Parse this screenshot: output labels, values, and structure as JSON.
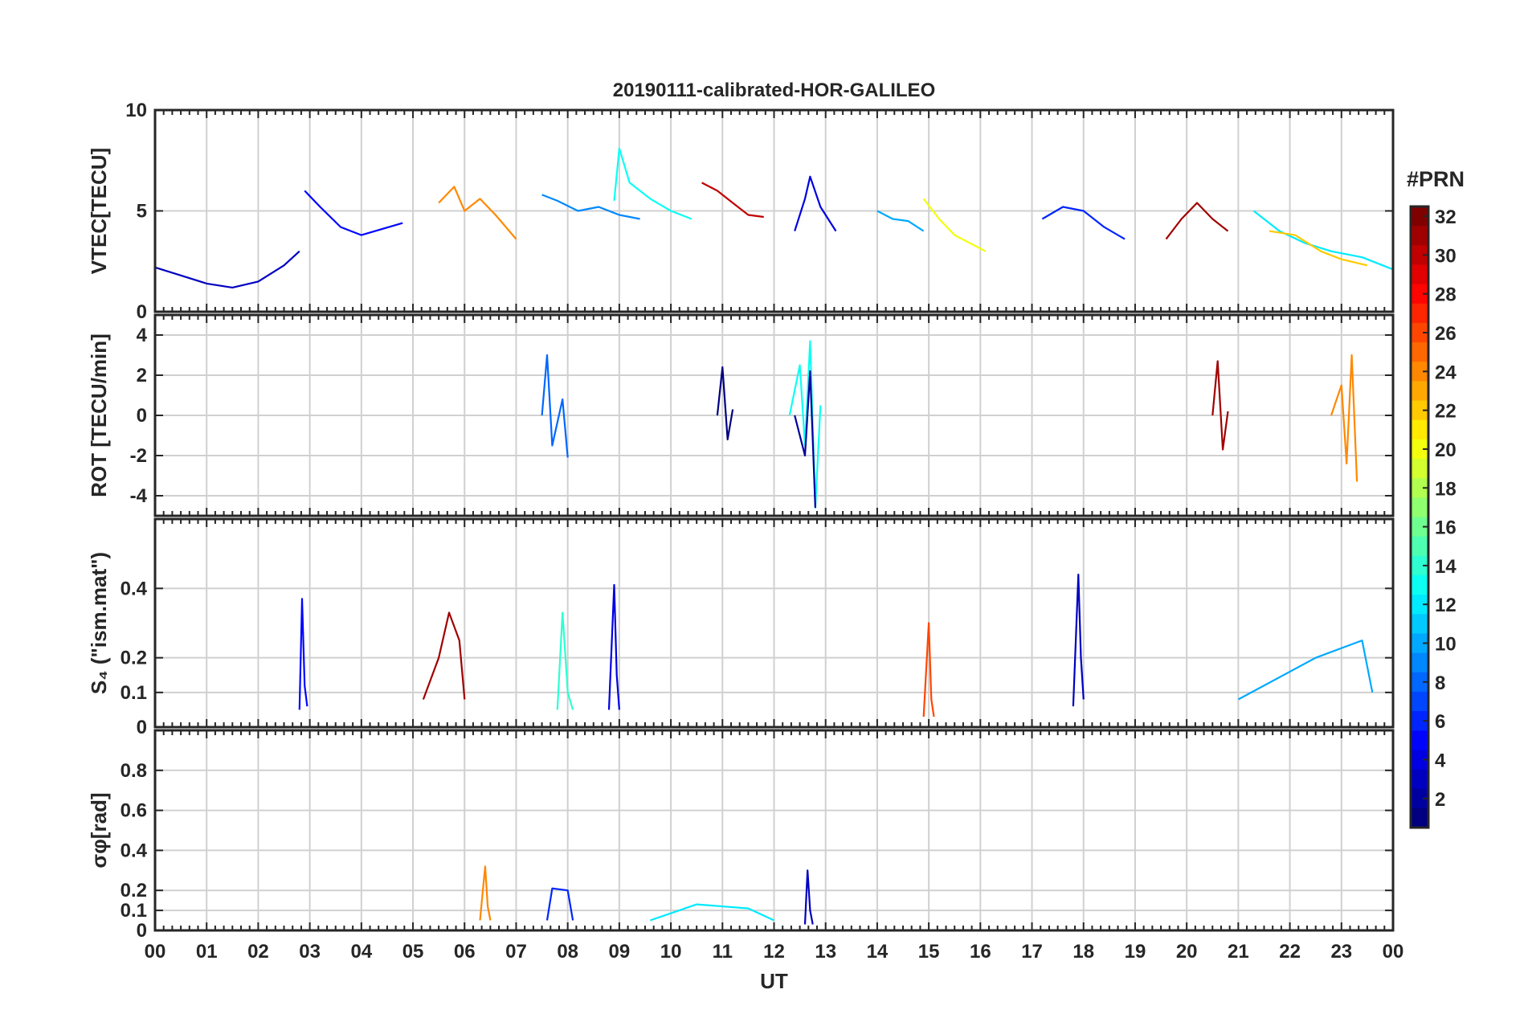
{
  "chart_data": {
    "type": "line",
    "title": "20190111-calibrated-HOR-GALILEO",
    "xlabel": "UT",
    "x_ticks": [
      "00",
      "01",
      "02",
      "03",
      "04",
      "05",
      "06",
      "07",
      "08",
      "09",
      "10",
      "11",
      "12",
      "13",
      "14",
      "15",
      "16",
      "17",
      "18",
      "19",
      "20",
      "21",
      "22",
      "23",
      "00"
    ],
    "xlim": [
      0,
      24
    ],
    "grid": true,
    "panels": [
      {
        "ylabel": "VTEC[TECU]",
        "ylim": [
          0,
          10
        ],
        "y_ticks": [
          0,
          5,
          10
        ],
        "y_tick_labels": [
          "0",
          "5",
          "10"
        ],
        "series": [
          {
            "prn": 3,
            "x": [
              0,
              0.5,
              1,
              1.5,
              2,
              2.5,
              2.8
            ],
            "y": [
              2.2,
              1.8,
              1.4,
              1.2,
              1.5,
              2.3,
              3.0
            ]
          },
          {
            "prn": 5,
            "x": [
              2.9,
              3.2,
              3.6,
              4.0,
              4.4,
              4.8
            ],
            "y": [
              6.0,
              5.2,
              4.2,
              3.8,
              4.1,
              4.4
            ]
          },
          {
            "prn": 9,
            "x": [
              7.5,
              7.8,
              8.2,
              8.6,
              9.0,
              9.4
            ],
            "y": [
              5.8,
              5.5,
              5.0,
              5.2,
              4.8,
              4.6
            ]
          },
          {
            "prn": 13,
            "x": [
              8.9,
              9.0,
              9.2,
              9.6,
              10.0,
              10.4
            ],
            "y": [
              5.5,
              8.1,
              6.4,
              5.6,
              5.0,
              4.6
            ]
          },
          {
            "prn": 24,
            "x": [
              5.5,
              5.8,
              6.0,
              6.3,
              6.6,
              7.0
            ],
            "y": [
              5.4,
              6.2,
              5.0,
              5.6,
              4.8,
              3.6
            ]
          },
          {
            "prn": 30,
            "x": [
              10.6,
              10.9,
              11.2,
              11.5,
              11.8
            ],
            "y": [
              6.4,
              6.0,
              5.4,
              4.8,
              4.7
            ]
          },
          {
            "prn": 4,
            "x": [
              12.4,
              12.6,
              12.7,
              12.9,
              13.2
            ],
            "y": [
              4.0,
              5.6,
              6.7,
              5.2,
              4.0
            ]
          },
          {
            "prn": 10,
            "x": [
              14.0,
              14.3,
              14.6,
              14.9
            ],
            "y": [
              5.0,
              4.6,
              4.5,
              4.0
            ]
          },
          {
            "prn": 20,
            "x": [
              14.9,
              15.2,
              15.5,
              15.8,
              16.1
            ],
            "y": [
              5.6,
              4.6,
              3.8,
              3.4,
              3.0
            ]
          },
          {
            "prn": 6,
            "x": [
              17.2,
              17.6,
              18.0,
              18.4,
              18.8
            ],
            "y": [
              4.6,
              5.2,
              5.0,
              4.2,
              3.6
            ]
          },
          {
            "prn": 31,
            "x": [
              19.6,
              19.9,
              20.2,
              20.5,
              20.8
            ],
            "y": [
              3.6,
              4.6,
              5.4,
              4.6,
              4.0
            ]
          },
          {
            "prn": 12,
            "x": [
              21.3,
              21.8,
              22.3,
              22.8,
              23.4,
              24.0
            ],
            "y": [
              5.0,
              4.0,
              3.4,
              3.0,
              2.7,
              2.1
            ]
          },
          {
            "prn": 22,
            "x": [
              21.6,
              22.1,
              22.6,
              23.0,
              23.5
            ],
            "y": [
              4.0,
              3.8,
              3.0,
              2.6,
              2.3
            ]
          }
        ]
      },
      {
        "ylabel": "ROT [TECU/min]",
        "ylim": [
          -5,
          5
        ],
        "y_ticks": [
          -4,
          -2,
          0,
          2,
          4
        ],
        "y_tick_labels": [
          "-4",
          "-2",
          "0",
          "2",
          "4"
        ],
        "series": [
          {
            "prn": 13,
            "x": [
              12.3,
              12.5,
              12.6,
              12.7,
              12.8,
              12.9
            ],
            "y": [
              0,
              2.5,
              -1.5,
              3.7,
              -4.6,
              0.5
            ]
          },
          {
            "prn": 2,
            "x": [
              12.4,
              12.6,
              12.7,
              12.8
            ],
            "y": [
              0,
              -2.0,
              2.2,
              -4.6
            ]
          },
          {
            "prn": 24,
            "x": [
              22.8,
              23.0,
              23.1,
              23.2,
              23.3
            ],
            "y": [
              0,
              1.5,
              -2.4,
              3.0,
              -3.3
            ]
          },
          {
            "prn": 31,
            "x": [
              20.5,
              20.6,
              20.7,
              20.8
            ],
            "y": [
              0,
              2.7,
              -1.7,
              0.2
            ]
          },
          {
            "prn": 8,
            "x": [
              7.5,
              7.6,
              7.7,
              7.9,
              8.0
            ],
            "y": [
              0,
              3.0,
              -1.5,
              0.8,
              -2.1
            ]
          },
          {
            "prn": 1,
            "x": [
              10.9,
              11.0,
              11.1,
              11.2
            ],
            "y": [
              0,
              2.4,
              -1.2,
              0.3
            ]
          }
        ]
      },
      {
        "ylabel": "S₄ (\"ism.mat\")",
        "ylim": [
          0,
          0.6
        ],
        "y_ticks": [
          0,
          0.1,
          0.2,
          0.4
        ],
        "y_tick_labels": [
          "0",
          "0.1",
          "0.2",
          "0.4"
        ],
        "series": [
          {
            "prn": 5,
            "x": [
              2.8,
              2.85,
              2.9,
              2.95
            ],
            "y": [
              0.05,
              0.37,
              0.12,
              0.06
            ]
          },
          {
            "prn": 31,
            "x": [
              5.2,
              5.5,
              5.7,
              5.9,
              6.0
            ],
            "y": [
              0.08,
              0.2,
              0.33,
              0.25,
              0.08
            ]
          },
          {
            "prn": 14,
            "x": [
              7.8,
              7.9,
              8.0,
              8.1
            ],
            "y": [
              0.05,
              0.33,
              0.1,
              0.05
            ]
          },
          {
            "prn": 4,
            "x": [
              8.8,
              8.9,
              8.95,
              9.0
            ],
            "y": [
              0.05,
              0.41,
              0.15,
              0.05
            ]
          },
          {
            "prn": 26,
            "x": [
              14.9,
              15.0,
              15.05,
              15.1
            ],
            "y": [
              0.03,
              0.3,
              0.08,
              0.03
            ]
          },
          {
            "prn": 3,
            "x": [
              17.8,
              17.9,
              17.95,
              18.0
            ],
            "y": [
              0.06,
              0.44,
              0.2,
              0.08
            ]
          },
          {
            "prn": 10,
            "x": [
              21.0,
              22.5,
              23.4,
              23.6
            ],
            "y": [
              0.08,
              0.2,
              0.25,
              0.1
            ]
          }
        ]
      },
      {
        "ylabel": "σφ[rad]",
        "ylim": [
          0,
          1
        ],
        "y_ticks": [
          0,
          0.1,
          0.2,
          0.4,
          0.6,
          0.8
        ],
        "y_tick_labels": [
          "0",
          "0.1",
          "0.2",
          "0.4",
          "0.6",
          "0.8"
        ],
        "series": [
          {
            "prn": 24,
            "x": [
              6.3,
              6.4,
              6.45,
              6.5
            ],
            "y": [
              0.05,
              0.32,
              0.12,
              0.05
            ]
          },
          {
            "prn": 6,
            "x": [
              7.6,
              7.7,
              8.0,
              8.1
            ],
            "y": [
              0.05,
              0.21,
              0.2,
              0.05
            ]
          },
          {
            "prn": 12,
            "x": [
              9.6,
              10.5,
              11.5,
              12.0
            ],
            "y": [
              0.05,
              0.13,
              0.11,
              0.05
            ]
          },
          {
            "prn": 3,
            "x": [
              12.6,
              12.65,
              12.7,
              12.75
            ],
            "y": [
              0.03,
              0.3,
              0.1,
              0.03
            ]
          }
        ]
      }
    ],
    "colorbar": {
      "title": "#PRN",
      "ticks": [
        2,
        4,
        6,
        8,
        10,
        12,
        14,
        16,
        18,
        20,
        22,
        24,
        26,
        28,
        30,
        32
      ],
      "range": [
        1,
        32
      ],
      "colormap": "jet"
    }
  }
}
